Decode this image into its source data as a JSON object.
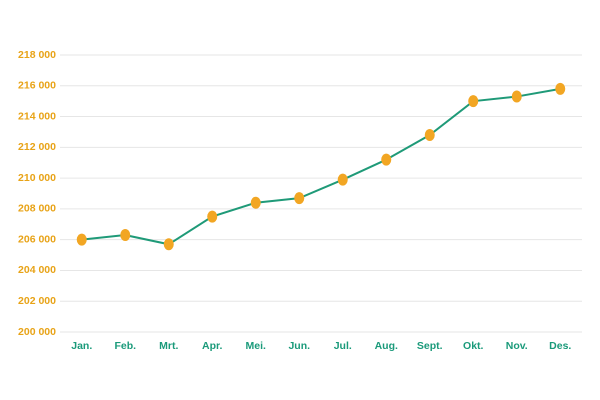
{
  "chart_data": {
    "type": "line",
    "categories": [
      "Jan.",
      "Feb.",
      "Mrt.",
      "Apr.",
      "Mei.",
      "Jun.",
      "Jul.",
      "Aug.",
      "Sept.",
      "Okt.",
      "Nov.",
      "Des."
    ],
    "values": [
      206000,
      206300,
      205700,
      207500,
      208400,
      208700,
      209900,
      211200,
      212800,
      215000,
      215300,
      215800
    ],
    "color": "#1f9a78",
    "marker_color": "#f2a623",
    "ylim": [
      200000,
      218000
    ],
    "yticks": [
      {
        "value": 200000,
        "label": "200 000"
      },
      {
        "value": 202000,
        "label": "202 000"
      },
      {
        "value": 204000,
        "label": "204 000"
      },
      {
        "value": 206000,
        "label": "206 000"
      },
      {
        "value": 208000,
        "label": "208 000"
      },
      {
        "value": 210000,
        "label": "210 000"
      },
      {
        "value": 212000,
        "label": "212 000"
      },
      {
        "value": 214000,
        "label": "214 000"
      },
      {
        "value": 216000,
        "label": "216 000"
      },
      {
        "value": 218000,
        "label": "218 000"
      }
    ],
    "grid": true
  }
}
